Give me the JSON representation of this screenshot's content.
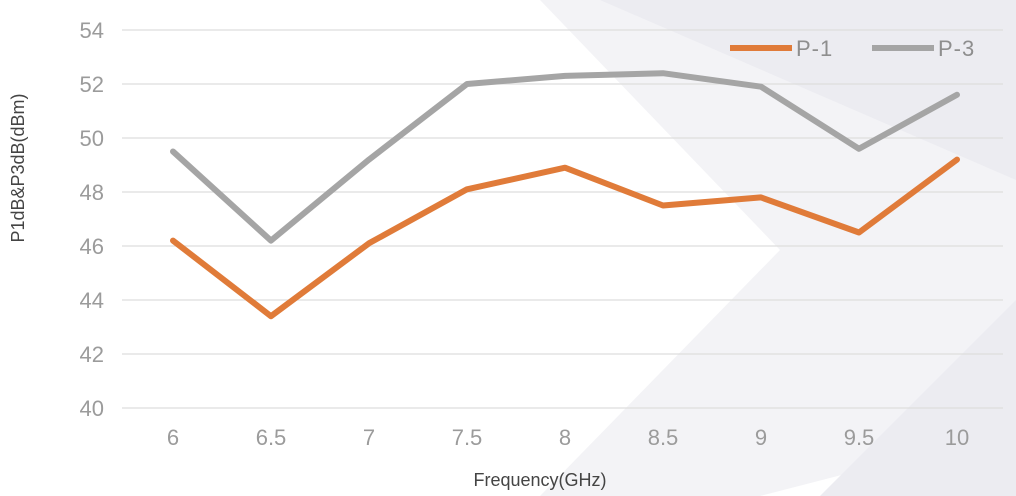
{
  "chart_data": {
    "type": "line",
    "x": [
      "6",
      "6.5",
      "7",
      "7.5",
      "8",
      "8.5",
      "9",
      "9.5",
      "10"
    ],
    "series": [
      {
        "name": "P-1",
        "color": "#e07b39",
        "values": [
          46.2,
          43.4,
          46.1,
          48.1,
          48.9,
          47.5,
          47.8,
          46.5,
          49.2
        ]
      },
      {
        "name": "P-3",
        "color": "#a5a5a5",
        "values": [
          49.5,
          46.2,
          49.2,
          52.0,
          52.3,
          52.4,
          51.9,
          49.6,
          51.6
        ]
      }
    ],
    "ylim": [
      40,
      54
    ],
    "yticks": [
      "40",
      "42",
      "44",
      "46",
      "48",
      "50",
      "52",
      "54"
    ],
    "xlabel": "Frequency(GHz)",
    "ylabel": "P1dB&P3dB(dBm)",
    "title": "",
    "grid": "horizontal",
    "legend_position": "top-right"
  }
}
